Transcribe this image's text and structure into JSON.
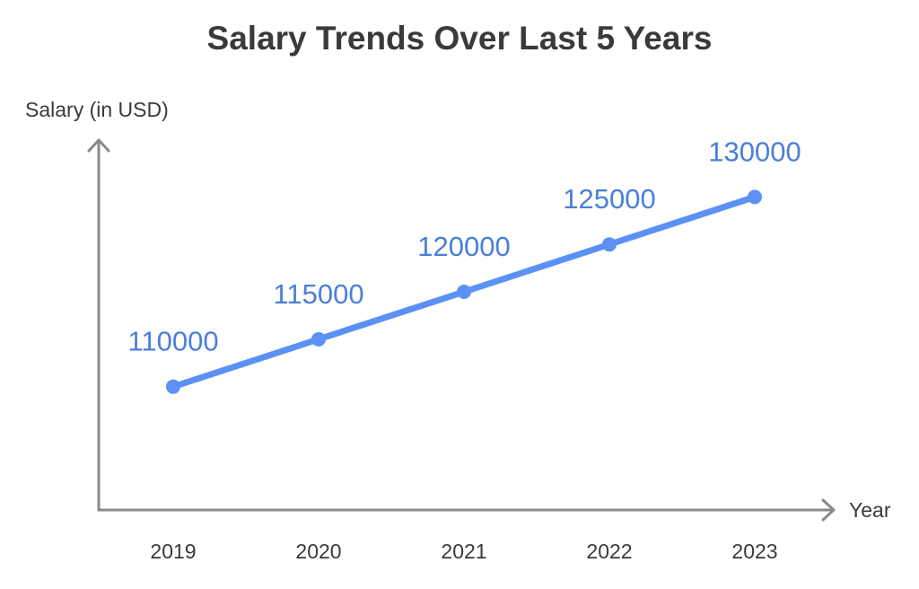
{
  "chart_data": {
    "type": "line",
    "title": "Salary Trends Over Last 5 Years",
    "xlabel": "Year",
    "ylabel": "Salary (in USD)",
    "categories": [
      "2019",
      "2020",
      "2021",
      "2022",
      "2023"
    ],
    "series": [
      {
        "name": "Salary",
        "values": [
          110000,
          115000,
          120000,
          125000,
          130000
        ],
        "color": "#5b91f5"
      }
    ],
    "data_label_color": "#4a7fd8",
    "axis_color": "#8a8a8a",
    "text_color": "#3a3a3a",
    "ylim": [
      97000,
      136000
    ],
    "grid": false
  }
}
